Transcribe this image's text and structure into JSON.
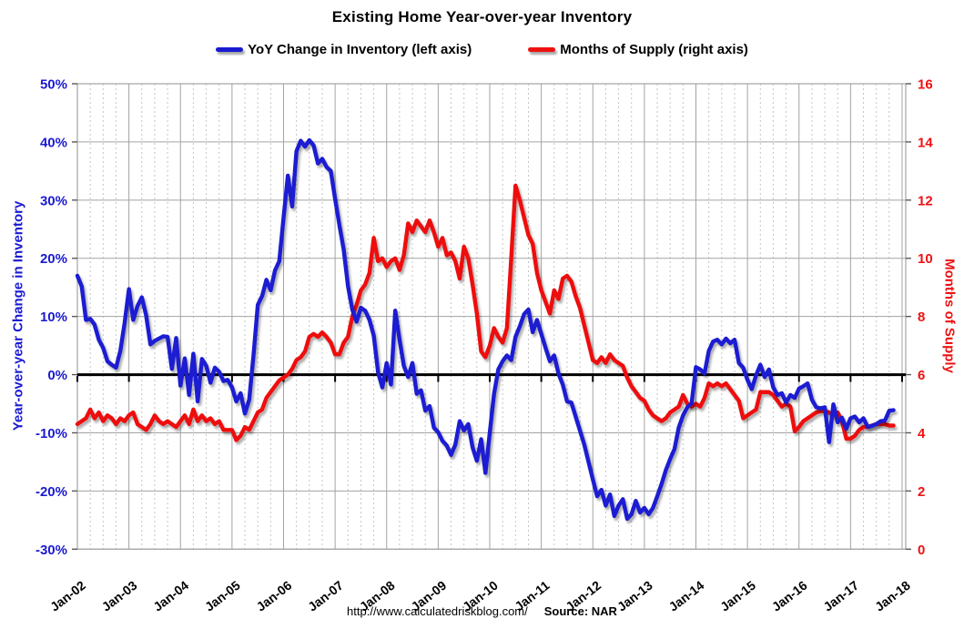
{
  "title": "Existing Home Year-over-year Inventory",
  "legend": {
    "items": [
      {
        "label": "YoY Change in Inventory (left axis)",
        "color": "#1a1ad2"
      },
      {
        "label": "Months of Supply (right axis)",
        "color": "#ee1111"
      }
    ]
  },
  "left_axis_title": "Year-over-year Change in Inventory",
  "right_axis_title": "Months of Supply",
  "footer": {
    "url": "http://www.calculatedriskblog.com/",
    "source": "Source: NAR"
  },
  "colors": {
    "blue_series": "#1a1ad2",
    "red_series": "#ee1111",
    "grid_solid": "#a3a3a3",
    "grid_dashed": "#c4c4c4",
    "zero_line": "#000000",
    "tick": "#595959",
    "left_labels": "#1a1ad2",
    "right_labels": "#ee1111"
  },
  "chart_data": {
    "type": "line",
    "title": "Existing Home Year-over-year Inventory",
    "x_start": "2002-01",
    "frequency": "monthly",
    "x_tick_labels": [
      "Jan-02",
      "Jan-03",
      "Jan-04",
      "Jan-05",
      "Jan-06",
      "Jan-07",
      "Jan-08",
      "Jan-09",
      "Jan-10",
      "Jan-11",
      "Jan-12",
      "Jan-13",
      "Jan-14",
      "Jan-15",
      "Jan-16",
      "Jan-17",
      "Jan-18"
    ],
    "left_axis": {
      "label": "Year-over-year Change in Inventory",
      "tick_labels": [
        "50%",
        "40%",
        "30%",
        "20%",
        "10%",
        "0%",
        "-10%",
        "-20%",
        "-30%"
      ],
      "range": [
        -30,
        50
      ]
    },
    "right_axis": {
      "label": "Months of Supply",
      "tick_labels": [
        "16",
        "14",
        "12",
        "10",
        "8",
        "6",
        "4",
        "2",
        "0"
      ],
      "range": [
        0,
        16
      ]
    },
    "grid": "solid yearly + 10% horizontal, dashed quarterly vertical",
    "legend_position": "top-center",
    "series": [
      {
        "name": "YoY Change in Inventory (left axis)",
        "axis": "left",
        "unit": "%",
        "color": "#1a1ad2",
        "values": [
          17.0,
          15.2,
          9.4,
          9.6,
          8.6,
          6.0,
          4.6,
          2.3,
          1.7,
          1.2,
          4.1,
          8.9,
          14.7,
          9.4,
          11.8,
          13.3,
          10.2,
          5.2,
          5.8,
          6.2,
          6.6,
          6.5,
          1.0,
          6.3,
          -1.9,
          2.8,
          -3.5,
          3.6,
          -4.6,
          2.7,
          1.5,
          -1.4,
          1.2,
          0.5,
          -1.1,
          -0.9,
          -2.2,
          -4.6,
          -3.2,
          -6.7,
          -4.3,
          3.3,
          12.0,
          13.5,
          16.3,
          14.5,
          17.9,
          19.5,
          27.0,
          34.2,
          28.9,
          38.4,
          40.2,
          39.2,
          40.3,
          39.4,
          36.3,
          37.1,
          35.7,
          35.0,
          30.2,
          25.7,
          21.5,
          15.2,
          11.2,
          9.1,
          11.5,
          11.0,
          9.4,
          6.7,
          0.4,
          -2.2,
          2.0,
          -1.7,
          11.0,
          6.0,
          1.5,
          -0.4,
          2.0,
          -3.3,
          -2.7,
          -6.2,
          -5.4,
          -9.1,
          -9.9,
          -11.4,
          -12.2,
          -13.8,
          -12.0,
          -8.0,
          -9.6,
          -8.5,
          -12.5,
          -14.8,
          -11.1,
          -16.9,
          -10.0,
          -3.3,
          0.9,
          2.3,
          3.3,
          2.5,
          6.5,
          8.3,
          10.4,
          11.2,
          7.3,
          9.4,
          7.0,
          4.6,
          2.3,
          3.3,
          0.2,
          -1.7,
          -4.6,
          -4.8,
          -7.2,
          -9.6,
          -12.0,
          -15.0,
          -18.0,
          -20.9,
          -19.8,
          -22.5,
          -20.6,
          -24.3,
          -22.5,
          -21.4,
          -24.8,
          -24.0,
          -21.7,
          -23.7,
          -22.9,
          -24.0,
          -22.9,
          -20.9,
          -18.8,
          -16.4,
          -14.5,
          -12.8,
          -9.1,
          -7.0,
          -5.6,
          -4.9,
          1.3,
          0.9,
          0.2,
          4.1,
          5.7,
          6.0,
          5.2,
          6.2,
          5.4,
          6.0,
          2.0,
          1.2,
          -0.9,
          -2.5,
          -0.1,
          1.7,
          -0.4,
          0.9,
          -2.2,
          -3.5,
          -3.2,
          -4.8,
          -3.5,
          -4.0,
          -2.4,
          -2.0,
          -1.5,
          -4.3,
          -5.6,
          -5.8,
          -5.6,
          -11.6,
          -5.1,
          -8.2,
          -7.4,
          -9.3,
          -7.5,
          -7.2,
          -8.2,
          -7.5,
          -9.0,
          -8.8,
          -8.5,
          -8.0,
          -7.9,
          -6.2,
          -6.1
        ]
      },
      {
        "name": "Months of Supply (right axis)",
        "axis": "right",
        "unit": "months",
        "color": "#ee1111",
        "values": [
          4.3,
          4.4,
          4.5,
          4.8,
          4.5,
          4.7,
          4.4,
          4.6,
          4.5,
          4.3,
          4.5,
          4.4,
          4.6,
          4.7,
          4.3,
          4.2,
          4.1,
          4.3,
          4.6,
          4.4,
          4.3,
          4.4,
          4.3,
          4.2,
          4.4,
          4.6,
          4.3,
          4.8,
          4.4,
          4.6,
          4.4,
          4.5,
          4.3,
          4.4,
          4.1,
          4.1,
          4.1,
          3.75,
          3.9,
          4.2,
          4.1,
          4.4,
          4.7,
          4.8,
          5.2,
          5.4,
          5.6,
          5.8,
          5.9,
          6.0,
          6.2,
          6.5,
          6.6,
          6.8,
          7.3,
          7.4,
          7.3,
          7.45,
          7.3,
          7.1,
          6.7,
          6.7,
          7.1,
          7.3,
          8.0,
          8.4,
          8.9,
          9.1,
          9.5,
          10.7,
          9.9,
          10.0,
          9.7,
          9.9,
          10.0,
          9.6,
          10.1,
          11.2,
          10.9,
          11.3,
          11.1,
          10.9,
          11.3,
          10.9,
          10.4,
          10.7,
          10.1,
          10.2,
          9.9,
          9.3,
          10.4,
          10.0,
          9.1,
          8.1,
          6.8,
          6.6,
          7.0,
          7.6,
          7.3,
          7.1,
          7.6,
          10.0,
          12.5,
          12.0,
          11.4,
          10.8,
          10.5,
          9.5,
          8.9,
          8.5,
          8.1,
          8.9,
          8.6,
          9.3,
          9.4,
          9.2,
          8.7,
          8.3,
          7.7,
          7.1,
          6.5,
          6.4,
          6.6,
          6.4,
          6.7,
          6.5,
          6.4,
          6.3,
          5.9,
          5.6,
          5.4,
          5.2,
          5.1,
          4.8,
          4.6,
          4.5,
          4.4,
          4.5,
          4.7,
          4.8,
          4.9,
          5.3,
          5.0,
          4.9,
          5.0,
          4.9,
          5.2,
          5.7,
          5.6,
          5.7,
          5.6,
          5.7,
          5.5,
          5.3,
          5.1,
          4.5,
          4.6,
          4.7,
          4.8,
          5.4,
          5.4,
          5.4,
          5.3,
          5.1,
          4.9,
          5.0,
          4.9,
          4.05,
          4.2,
          4.4,
          4.5,
          4.6,
          4.7,
          4.75,
          4.75,
          4.7,
          4.6,
          4.7,
          4.4,
          3.8,
          3.8,
          3.9,
          4.1,
          4.2,
          4.2,
          4.25,
          4.3,
          4.3,
          4.3,
          4.25,
          4.25
        ]
      }
    ]
  }
}
